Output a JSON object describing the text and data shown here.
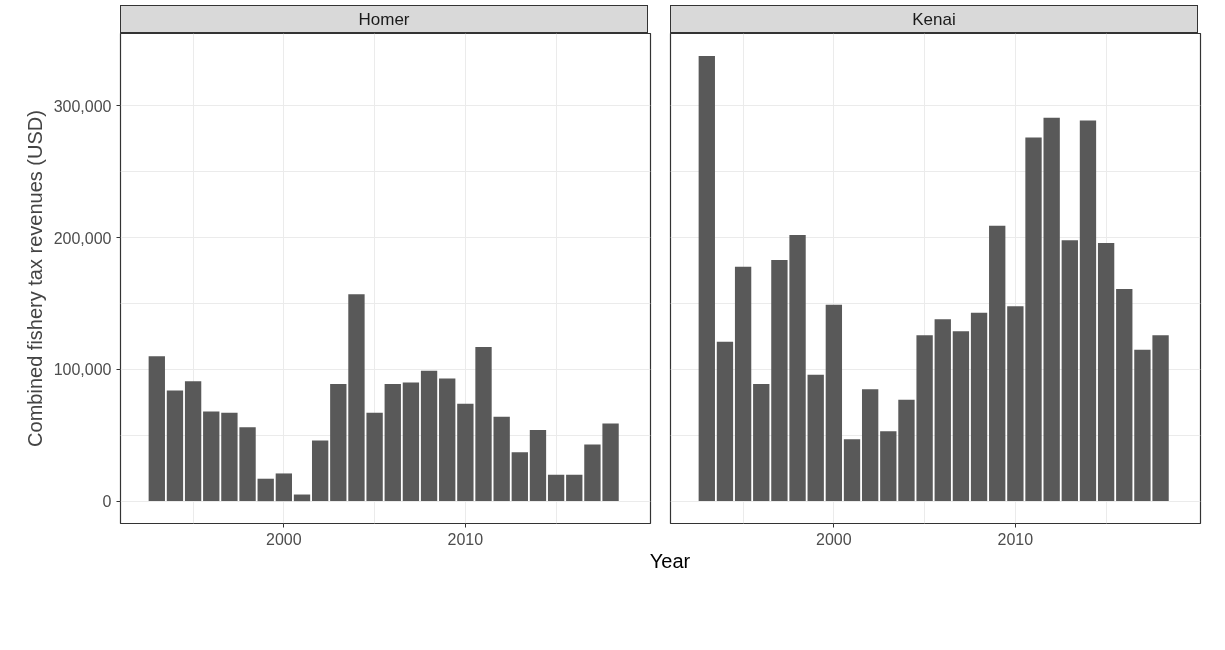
{
  "chart_data": [
    {
      "type": "bar",
      "title": "Homer",
      "ylabel": "Combined fishery tax revenues (USD)",
      "color": "#595959",
      "x": [
        1993,
        1994,
        1995,
        1996,
        1997,
        1998,
        1999,
        2000,
        2001,
        2002,
        2003,
        2004,
        2005,
        2006,
        2007,
        2008,
        2009,
        2010,
        2011,
        2012,
        2013,
        2014,
        2015,
        2016,
        2017,
        2018
      ],
      "values": [
        110000,
        84000,
        91000,
        68000,
        67000,
        56000,
        17000,
        21000,
        5000,
        46000,
        89000,
        157000,
        67000,
        89000,
        90000,
        99000,
        93000,
        74000,
        117000,
        64000,
        37000,
        54000,
        20000,
        20000,
        43000,
        59000
      ],
      "xlim": [
        1991.0,
        2020.2
      ],
      "ylim": [
        -17000,
        355000
      ],
      "xticks": [
        {
          "value": 1995,
          "label": null
        },
        2000,
        {
          "value": 2005,
          "label": null
        },
        2010,
        {
          "value": 2015,
          "label": null
        }
      ],
      "yticks": [
        0,
        {
          "value": 50000,
          "label": null
        },
        {
          "value": 100000,
          "label": "100,000"
        },
        {
          "value": 150000,
          "label": null
        },
        {
          "value": 200000,
          "label": "200,000"
        },
        {
          "value": 250000,
          "label": null
        },
        {
          "value": 300000,
          "label": "300,000"
        }
      ],
      "grid": true
    },
    {
      "type": "bar",
      "title": "Kenai",
      "xlabel": "Year",
      "color": "#595959",
      "x": [
        1993,
        1994,
        1995,
        1996,
        1997,
        1998,
        1999,
        2000,
        2001,
        2002,
        2003,
        2004,
        2005,
        2006,
        2007,
        2008,
        2009,
        2010,
        2011,
        2012,
        2013,
        2014,
        2015,
        2016,
        2017,
        2018
      ],
      "values": [
        338000,
        121000,
        178000,
        89000,
        183000,
        202000,
        96000,
        149000,
        47000,
        85000,
        53000,
        77000,
        126000,
        138000,
        129000,
        143000,
        209000,
        148000,
        276000,
        291000,
        198000,
        289000,
        196000,
        161000,
        115000,
        126000
      ],
      "xlim": [
        1991.0,
        2020.2
      ],
      "ylim": [
        -17000,
        355000
      ],
      "xticks": [
        {
          "value": 1995,
          "label": null
        },
        2000,
        {
          "value": 2005,
          "label": null
        },
        2010,
        {
          "value": 2015,
          "label": null
        }
      ],
      "yticks": [
        {
          "value": 0,
          "label": null
        },
        {
          "value": 50000,
          "label": null
        },
        {
          "value": 100000,
          "label": null
        },
        {
          "value": 150000,
          "label": null
        },
        {
          "value": 200000,
          "label": null
        },
        {
          "value": 250000,
          "label": null
        },
        {
          "value": 300000,
          "label": null
        }
      ],
      "grid": true,
      "tick_labels": "x"
    }
  ]
}
